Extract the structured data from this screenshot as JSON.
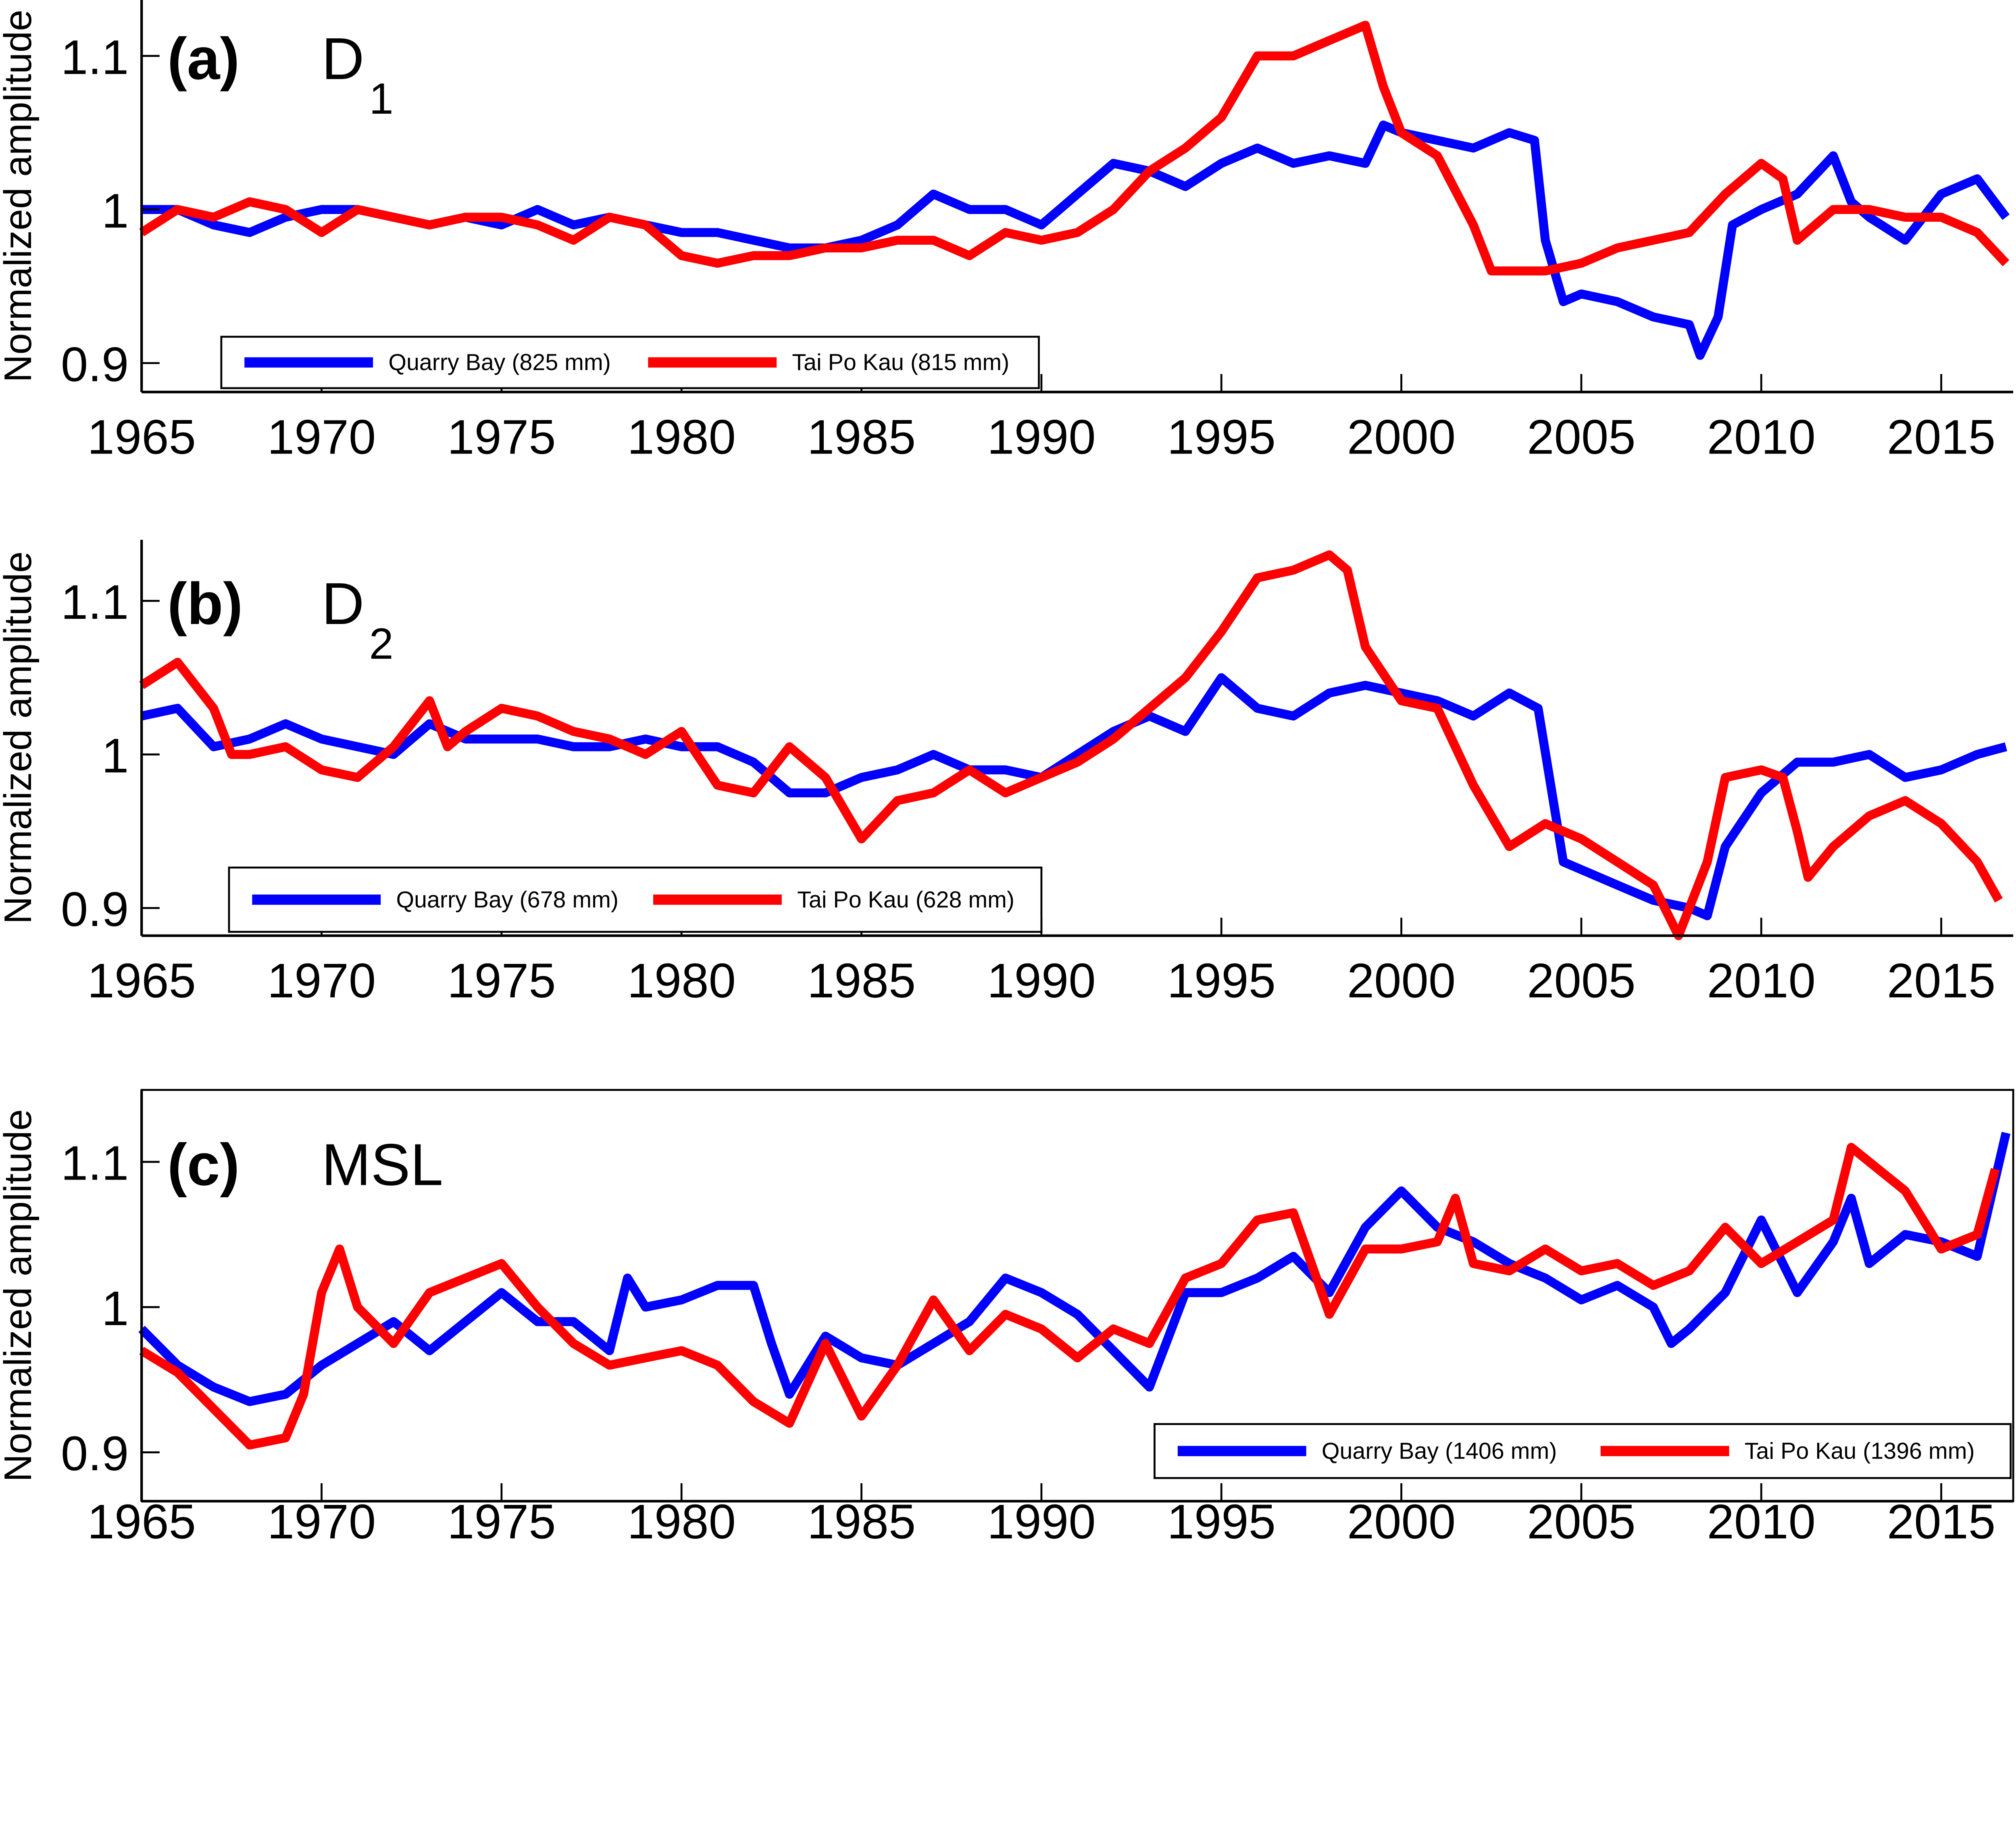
{
  "chart_data": [
    {
      "type": "line",
      "panel_label": "(a)",
      "constituent": "D",
      "constituent_sub": "1",
      "ylabel": "Normalized amplitude",
      "xlim": [
        1965,
        2017
      ],
      "ylim": [
        0.88,
        1.135
      ],
      "xticks": [
        "1965",
        "1970",
        "1975",
        "1980",
        "1985",
        "1990",
        "1995",
        "2000",
        "2005",
        "2010",
        "2015"
      ],
      "yticks": [
        "0.9",
        "1",
        "1.1"
      ],
      "legend_position": "bottom-left",
      "series": [
        {
          "name": "Quarry Bay (825 mm)",
          "color": "#0000ff",
          "x": [
            1965,
            1966,
            1967,
            1968,
            1969,
            1970,
            1971,
            1972,
            1973,
            1974,
            1975,
            1976,
            1977,
            1978,
            1979,
            1980,
            1981,
            1982,
            1983,
            1984,
            1985,
            1986,
            1987,
            1988,
            1989,
            1990,
            1991,
            1992,
            1993,
            1994,
            1995,
            1996,
            1997,
            1998,
            1999,
            1999.5,
            2000,
            2001,
            2002,
            2003,
            2003.7,
            2004,
            2004.5,
            2005,
            2006,
            2007,
            2008,
            2008.3,
            2008.8,
            2009.2,
            2010,
            2011,
            2012,
            2012.5,
            2013,
            2014,
            2015,
            2016,
            2016.8
          ],
          "y": [
            1.0,
            1.0,
            0.99,
            0.985,
            0.995,
            1.0,
            1.0,
            0.995,
            0.99,
            0.995,
            0.99,
            1.0,
            0.99,
            0.995,
            0.99,
            0.985,
            0.985,
            0.98,
            0.975,
            0.975,
            0.98,
            0.99,
            1.01,
            1.0,
            1.0,
            0.99,
            1.01,
            1.03,
            1.025,
            1.015,
            1.03,
            1.04,
            1.03,
            1.035,
            1.03,
            1.055,
            1.05,
            1.045,
            1.04,
            1.05,
            1.045,
            0.98,
            0.94,
            0.945,
            0.94,
            0.93,
            0.925,
            0.905,
            0.93,
            0.99,
            1.0,
            1.01,
            1.035,
            1.005,
            0.995,
            0.98,
            1.01,
            1.02,
            0.995
          ]
        },
        {
          "name": "Tai Po Kau (815 mm)",
          "color": "#ff0000",
          "x": [
            1965,
            1966,
            1967,
            1968,
            1969,
            1970,
            1971,
            1972,
            1973,
            1974,
            1975,
            1976,
            1977,
            1978,
            1979,
            1980,
            1981,
            1982,
            1983,
            1984,
            1985,
            1986,
            1987,
            1988,
            1989,
            1990,
            1991,
            1992,
            1993,
            1994,
            1995,
            1996,
            1997,
            1998,
            1999,
            1999.5,
            2000,
            2001,
            2002,
            2002.5,
            2004,
            2005,
            2006,
            2007,
            2008,
            2009,
            2010,
            2010.6,
            2011,
            2012,
            2013,
            2014,
            2015,
            2016,
            2016.8
          ],
          "y": [
            0.985,
            1.0,
            0.995,
            1.005,
            1.0,
            0.985,
            1.0,
            0.995,
            0.99,
            0.995,
            0.995,
            0.99,
            0.98,
            0.995,
            0.99,
            0.97,
            0.965,
            0.97,
            0.97,
            0.975,
            0.975,
            0.98,
            0.98,
            0.97,
            0.985,
            0.98,
            0.985,
            1.0,
            1.025,
            1.04,
            1.06,
            1.1,
            1.1,
            1.11,
            1.12,
            1.08,
            1.05,
            1.035,
            0.99,
            0.96,
            0.96,
            0.965,
            0.975,
            0.98,
            0.985,
            1.01,
            1.03,
            1.02,
            0.98,
            1.0,
            1.0,
            0.995,
            0.995,
            0.985,
            0.965
          ]
        }
      ]
    },
    {
      "type": "line",
      "panel_label": "(b)",
      "constituent": "D",
      "constituent_sub": "2",
      "ylabel": "Normalized amplitude",
      "xlim": [
        1965,
        2017
      ],
      "ylim": [
        0.88,
        1.135
      ],
      "xticks": [
        "1965",
        "1970",
        "1975",
        "1980",
        "1985",
        "1990",
        "1995",
        "2000",
        "2005",
        "2010",
        "2015"
      ],
      "yticks": [
        "0.9",
        "1",
        "1.1"
      ],
      "legend_position": "bottom-left",
      "series": [
        {
          "name": "Quarry Bay (678 mm)",
          "color": "#0000ff",
          "x": [
            1965,
            1966,
            1967,
            1968,
            1969,
            1970,
            1971,
            1972,
            1973,
            1974,
            1975,
            1976,
            1977,
            1978,
            1979,
            1980,
            1981,
            1982,
            1983,
            1984,
            1985,
            1986,
            1987,
            1988,
            1989,
            1990,
            1991,
            1992,
            1993,
            1994,
            1995,
            1996,
            1997,
            1998,
            1999,
            2000,
            2001,
            2002,
            2003,
            2003.8,
            2004.5,
            2005,
            2006,
            2007,
            2008,
            2008.5,
            2009,
            2010,
            2011,
            2012,
            2013,
            2014,
            2015,
            2016,
            2016.8
          ],
          "y": [
            1.025,
            1.03,
            1.005,
            1.01,
            1.02,
            1.01,
            1.005,
            1.0,
            1.02,
            1.01,
            1.01,
            1.01,
            1.005,
            1.005,
            1.01,
            1.005,
            1.005,
            0.995,
            0.975,
            0.975,
            0.985,
            0.99,
            1.0,
            0.99,
            0.99,
            0.985,
            1.0,
            1.015,
            1.025,
            1.015,
            1.05,
            1.03,
            1.025,
            1.04,
            1.045,
            1.04,
            1.035,
            1.025,
            1.04,
            1.03,
            0.93,
            0.925,
            0.915,
            0.905,
            0.9,
            0.895,
            0.94,
            0.975,
            0.995,
            0.995,
            1.0,
            0.985,
            0.99,
            1.0,
            1.005
          ]
        },
        {
          "name": "Tai Po Kau (628 mm)",
          "color": "#ff0000",
          "x": [
            1965,
            1966,
            1967,
            1967.5,
            1968,
            1969,
            1970,
            1971,
            1972,
            1973,
            1973.5,
            1974,
            1975,
            1976,
            1977,
            1978,
            1979,
            1980,
            1981,
            1982,
            1983,
            1984,
            1985,
            1986,
            1987,
            1988,
            1989,
            1990,
            1991,
            1992,
            1993,
            1994,
            1995,
            1996,
            1997,
            1998,
            1998.5,
            1999,
            2000,
            2001,
            2002,
            2003,
            2004,
            2005,
            2006,
            2007,
            2007.7,
            2008.5,
            2009,
            2010,
            2010.6,
            2011,
            2011.3,
            2012,
            2013,
            2014,
            2015,
            2016,
            2016.6
          ],
          "y": [
            1.045,
            1.06,
            1.03,
            1.0,
            1.0,
            1.005,
            0.99,
            0.985,
            1.005,
            1.035,
            1.005,
            1.015,
            1.03,
            1.025,
            1.015,
            1.01,
            1.0,
            1.015,
            0.98,
            0.975,
            1.005,
            0.985,
            0.945,
            0.97,
            0.975,
            0.99,
            0.975,
            0.985,
            0.995,
            1.01,
            1.03,
            1.05,
            1.08,
            1.115,
            1.12,
            1.13,
            1.12,
            1.07,
            1.035,
            1.03,
            0.98,
            0.94,
            0.955,
            0.945,
            0.93,
            0.915,
            0.88,
            0.93,
            0.985,
            0.99,
            0.985,
            0.95,
            0.92,
            0.94,
            0.96,
            0.97,
            0.955,
            0.93,
            0.905
          ]
        }
      ]
    },
    {
      "type": "line",
      "panel_label": "(c)",
      "constituent": "MSL",
      "constituent_sub": "",
      "ylabel": "Normalized amplitude",
      "xlim": [
        1965,
        2017
      ],
      "ylim": [
        0.88,
        1.15
      ],
      "xticks": [
        "1965",
        "1970",
        "1975",
        "1980",
        "1985",
        "1990",
        "1995",
        "2000",
        "2005",
        "2010",
        "2015"
      ],
      "yticks": [
        "0.9",
        "1",
        "1.1"
      ],
      "legend_position": "bottom-right",
      "series": [
        {
          "name": "Quarry Bay (1406 mm)",
          "color": "#0000ff",
          "x": [
            1965,
            1966,
            1967,
            1968,
            1969,
            1970,
            1971,
            1972,
            1973,
            1974,
            1975,
            1976,
            1977,
            1978,
            1978.5,
            1979,
            1980,
            1981,
            1982,
            1982.5,
            1983,
            1984,
            1985,
            1986,
            1987,
            1988,
            1989,
            1990,
            1991,
            1992,
            1993,
            1994,
            1995,
            1996,
            1997,
            1998,
            1999,
            2000,
            2001,
            2002,
            2003,
            2004,
            2005,
            2006,
            2007,
            2007.5,
            2008,
            2009,
            2010,
            2011,
            2012,
            2012.5,
            2013,
            2014,
            2015,
            2016,
            2016.8
          ],
          "y": [
            0.985,
            0.96,
            0.945,
            0.935,
            0.94,
            0.96,
            0.975,
            0.99,
            0.97,
            0.99,
            1.01,
            0.99,
            0.99,
            0.97,
            1.02,
            1.0,
            1.005,
            1.015,
            1.015,
            0.975,
            0.94,
            0.98,
            0.965,
            0.96,
            0.975,
            0.99,
            1.02,
            1.01,
            0.995,
            0.97,
            0.945,
            1.01,
            1.01,
            1.02,
            1.035,
            1.01,
            1.055,
            1.08,
            1.055,
            1.045,
            1.03,
            1.02,
            1.005,
            1.015,
            1.0,
            0.975,
            0.985,
            1.01,
            1.06,
            1.01,
            1.045,
            1.075,
            1.03,
            1.05,
            1.045,
            1.035,
            1.12
          ]
        },
        {
          "name": "Tai Po Kau (1396 mm)",
          "color": "#ff0000",
          "x": [
            1965,
            1966,
            1967,
            1968,
            1969,
            1969.5,
            1970,
            1970.5,
            1971,
            1972,
            1973,
            1974,
            1975,
            1976,
            1977,
            1978,
            1979,
            1980,
            1981,
            1982,
            1983,
            1984,
            1985,
            1986,
            1987,
            1988,
            1989,
            1990,
            1991,
            1992,
            1993,
            1994,
            1995,
            1996,
            1997,
            1998,
            1999,
            2000,
            2001,
            2001.5,
            2002,
            2003,
            2004,
            2005,
            2006,
            2007,
            2008,
            2009,
            2010,
            2011,
            2012,
            2012.5,
            2013,
            2014,
            2015,
            2016,
            2016.5
          ],
          "y": [
            0.97,
            0.955,
            0.93,
            0.905,
            0.91,
            0.94,
            1.01,
            1.04,
            1.0,
            0.975,
            1.01,
            1.02,
            1.03,
            1.0,
            0.975,
            0.96,
            0.965,
            0.97,
            0.96,
            0.935,
            0.92,
            0.975,
            0.925,
            0.96,
            1.005,
            0.97,
            0.995,
            0.985,
            0.965,
            0.985,
            0.975,
            1.02,
            1.03,
            1.06,
            1.065,
            0.995,
            1.04,
            1.04,
            1.045,
            1.075,
            1.03,
            1.025,
            1.04,
            1.025,
            1.03,
            1.015,
            1.025,
            1.055,
            1.03,
            1.045,
            1.06,
            1.11,
            1.1,
            1.08,
            1.04,
            1.05,
            1.095
          ]
        }
      ]
    }
  ]
}
